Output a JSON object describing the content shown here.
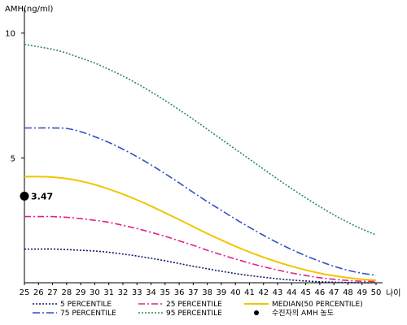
{
  "chart_data": {
    "type": "line",
    "title": "",
    "ylabel": "AMH(ng/ml)",
    "xlabel": "나이",
    "xlim": [
      25,
      50
    ],
    "ylim": [
      0,
      11
    ],
    "yticks": [
      5,
      10
    ],
    "x": [
      25,
      26,
      27,
      28,
      29,
      30,
      31,
      32,
      33,
      34,
      35,
      36,
      37,
      38,
      39,
      40,
      41,
      42,
      43,
      44,
      45,
      46,
      47,
      48,
      49,
      50
    ],
    "series": [
      {
        "name": "5 PERCENTILE",
        "color": "#0a1a6b",
        "dash": "2,2",
        "values": [
          1.35,
          1.35,
          1.35,
          1.33,
          1.3,
          1.27,
          1.22,
          1.15,
          1.07,
          0.98,
          0.88,
          0.77,
          0.66,
          0.56,
          0.46,
          0.37,
          0.29,
          0.22,
          0.16,
          0.11,
          0.07,
          0.04,
          0.02,
          0.01,
          0.0,
          0.0
        ]
      },
      {
        "name": "25 PERCENTILE",
        "color": "#e0208a",
        "dash": "8,3,2,3",
        "values": [
          2.65,
          2.65,
          2.65,
          2.62,
          2.57,
          2.5,
          2.42,
          2.3,
          2.17,
          2.02,
          1.86,
          1.68,
          1.5,
          1.3,
          1.12,
          0.95,
          0.79,
          0.64,
          0.51,
          0.39,
          0.29,
          0.2,
          0.14,
          0.09,
          0.06,
          0.05
        ]
      },
      {
        "name": "MEDIAN(50 PERCENTILE)",
        "color": "#f2c400",
        "dash": "",
        "values": [
          4.25,
          4.25,
          4.23,
          4.17,
          4.07,
          3.93,
          3.75,
          3.55,
          3.32,
          3.07,
          2.8,
          2.53,
          2.25,
          1.97,
          1.71,
          1.46,
          1.23,
          1.02,
          0.83,
          0.66,
          0.51,
          0.38,
          0.28,
          0.2,
          0.14,
          0.1
        ]
      },
      {
        "name": "75 PERCENTILE",
        "color": "#2f4fbf",
        "dash": "9,3,2,3",
        "values": [
          6.2,
          6.2,
          6.2,
          6.18,
          6.05,
          5.85,
          5.62,
          5.35,
          5.05,
          4.72,
          4.37,
          4.0,
          3.62,
          3.25,
          2.9,
          2.55,
          2.22,
          1.9,
          1.6,
          1.33,
          1.08,
          0.86,
          0.66,
          0.5,
          0.38,
          0.3
        ]
      },
      {
        "name": "95 PERCENTILE",
        "color": "#2e8b57",
        "dash": "2,2",
        "values": [
          9.55,
          9.45,
          9.35,
          9.2,
          9.0,
          8.8,
          8.55,
          8.28,
          7.98,
          7.65,
          7.3,
          6.93,
          6.55,
          6.15,
          5.75,
          5.35,
          4.95,
          4.55,
          4.15,
          3.77,
          3.4,
          3.05,
          2.72,
          2.42,
          2.15,
          1.92
        ]
      }
    ],
    "highlight": {
      "name": "수진자의 AMH 농도",
      "x": 25,
      "y": 3.47,
      "label": "3.47",
      "color": "#000000"
    },
    "legend_position": "bottom",
    "grid": false
  }
}
